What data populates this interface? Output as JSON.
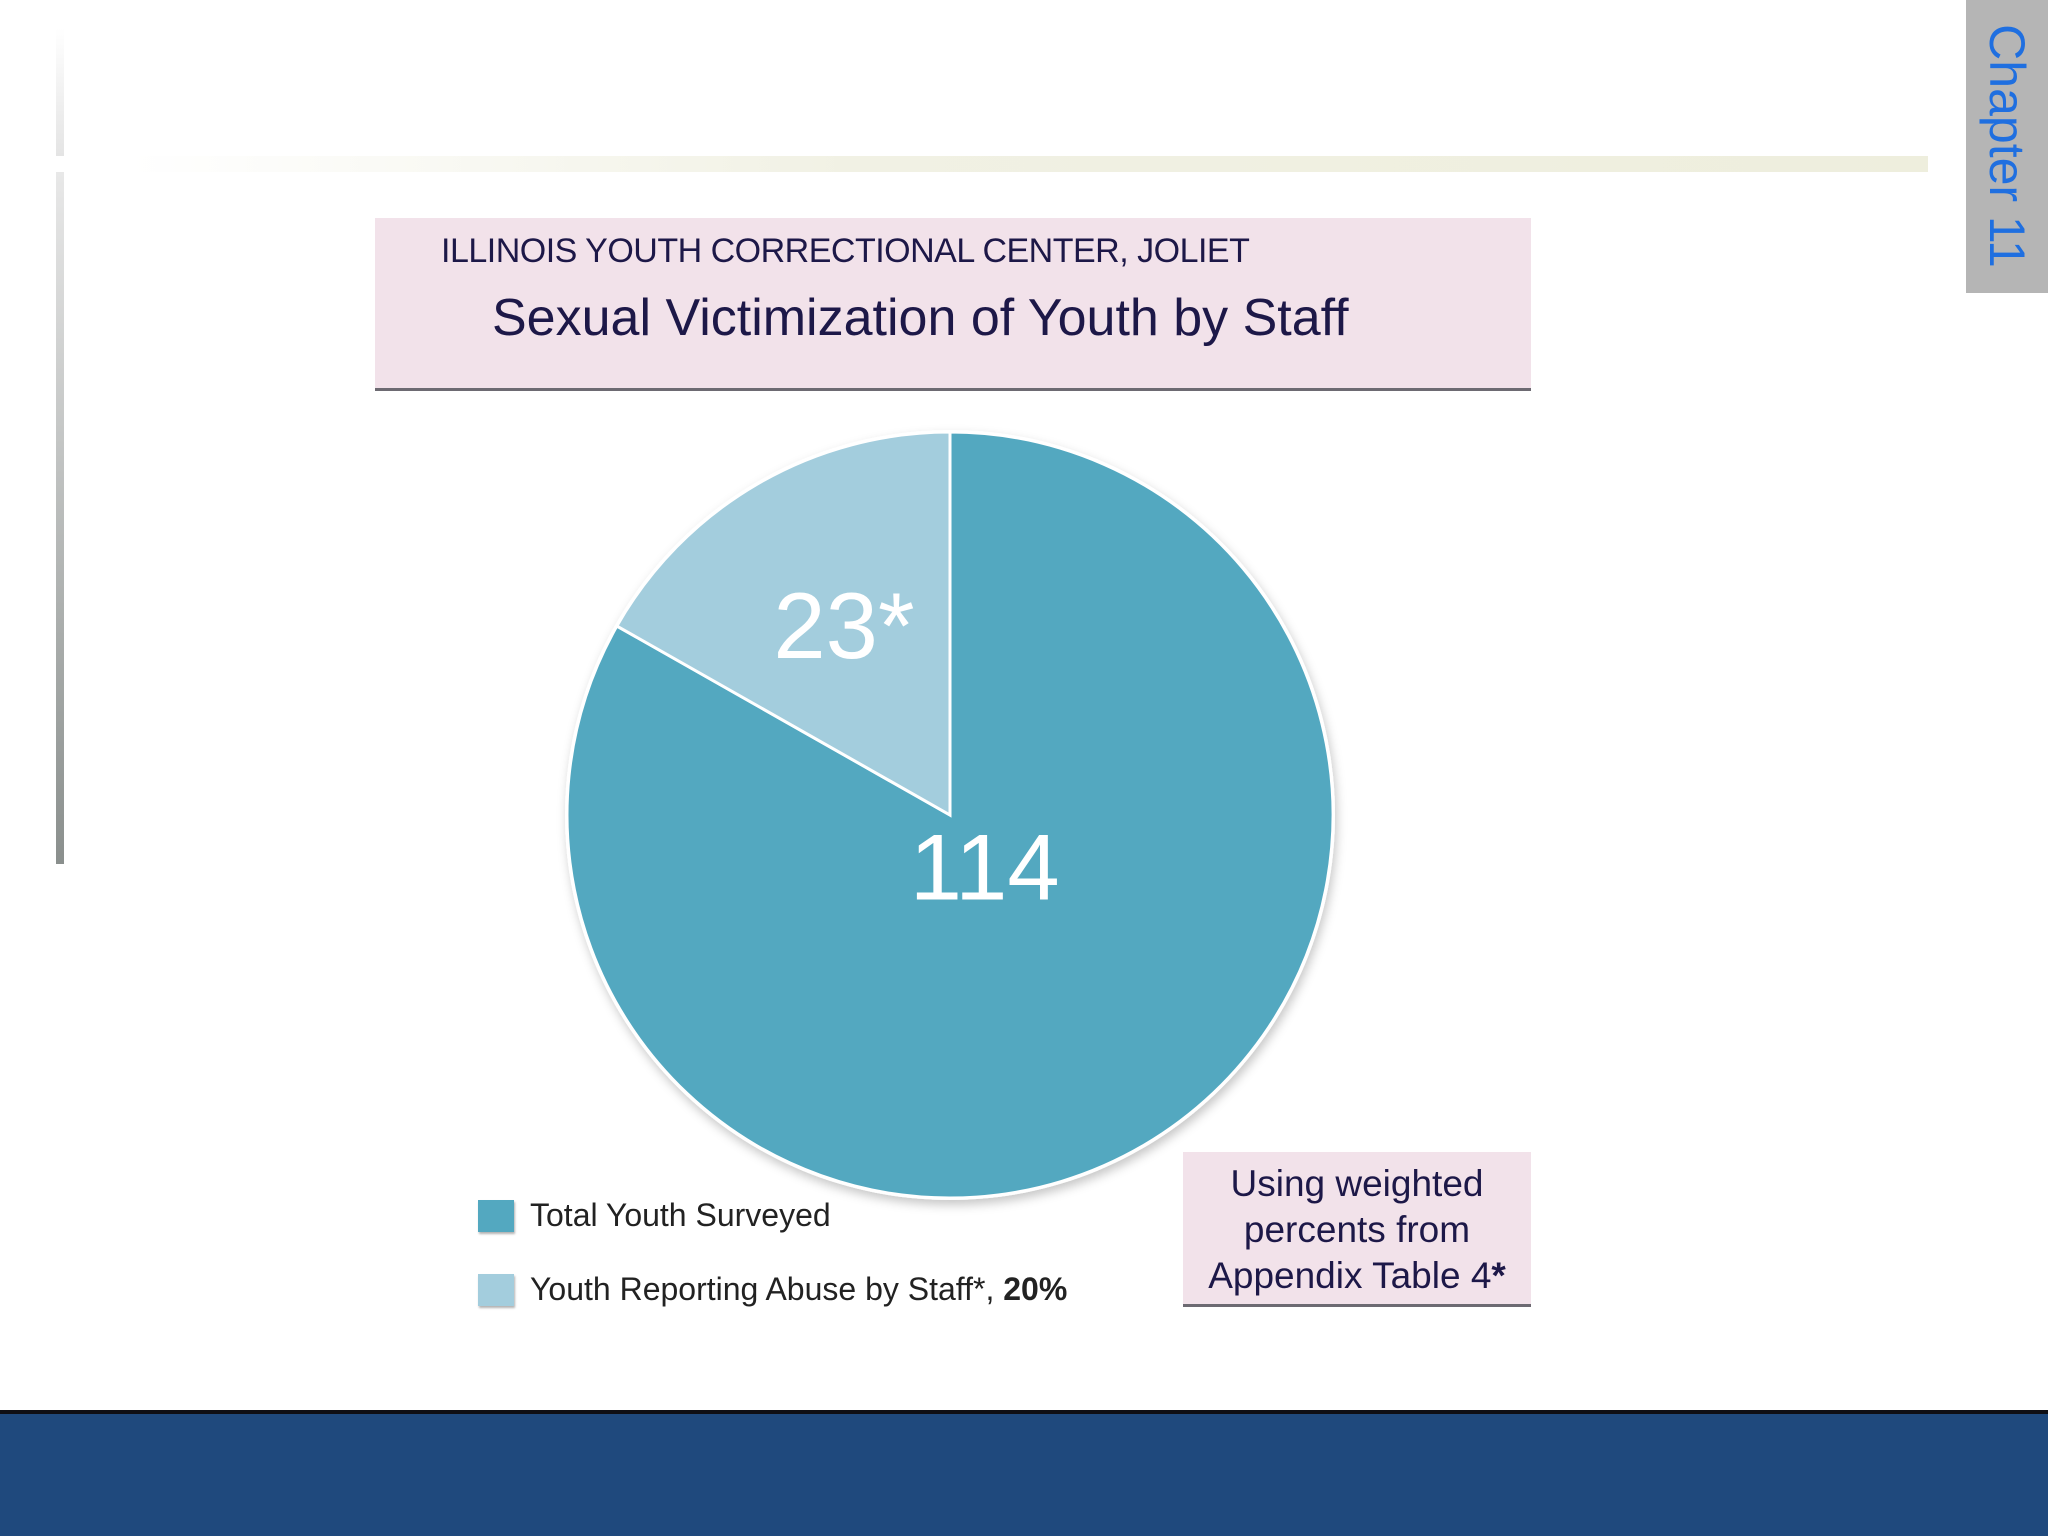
{
  "chapter_tab": "Chapter 11",
  "chart_data": {
    "type": "pie",
    "subtitle": "ILLINOIS YOUTH CORRECTIONAL CENTER, JOLIET",
    "title": "Sexual Victimization of Youth by Staff",
    "slices": [
      {
        "label": "114",
        "value": 114,
        "color": "#53a8c0"
      },
      {
        "label": "23*",
        "value": 23,
        "color": "#a3cddd"
      }
    ],
    "legend": [
      {
        "label": "Total Youth Surveyed",
        "suffix": "",
        "color": "#53a8c0"
      },
      {
        "label": "Youth Reporting Abuse by Staff*, ",
        "suffix": "20%",
        "color": "#a3cddd"
      }
    ],
    "legend_position": "bottom-left",
    "note": {
      "text": "Using weighted percents from Appendix Table 4",
      "marker": "*"
    }
  },
  "colors": {
    "footer": "#1f497d",
    "title_box": "#f2e2ea"
  }
}
